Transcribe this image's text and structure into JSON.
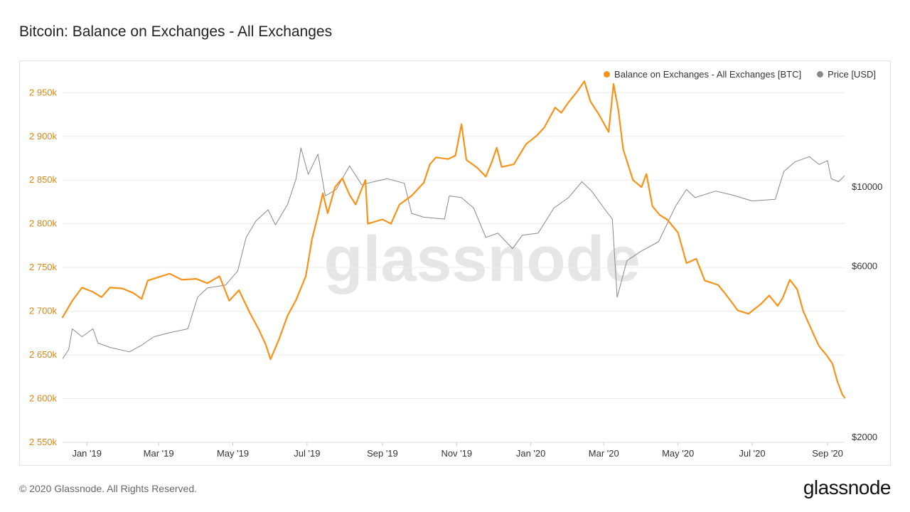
{
  "title": "Bitcoin: Balance on Exchanges - All Exchanges",
  "watermark": "glassnode",
  "footer": {
    "copyright": "© 2020 Glassnode. All Rights Reserved.",
    "brand": "glassnode"
  },
  "colors": {
    "balance": "#f7931a",
    "price": "#888888",
    "left_axis": "#d4891a",
    "right_axis": "#333333"
  },
  "legend": [
    {
      "label": "Balance on Exchanges - All Exchanges [BTC]",
      "color": "#f7931a"
    },
    {
      "label": "Price [USD]",
      "color": "#888888"
    }
  ],
  "chart_data": {
    "type": "line",
    "x_ticks": [
      "Jan '19",
      "Mar '19",
      "May '19",
      "Jul '19",
      "Sep '19",
      "Nov '19",
      "Jan '20",
      "Mar '20",
      "May '20",
      "Jul '20",
      "Sep '20"
    ],
    "x_tick_dates": [
      "2019-01-01",
      "2019-03-01",
      "2019-05-01",
      "2019-07-01",
      "2019-09-01",
      "2019-11-01",
      "2020-01-01",
      "2020-03-01",
      "2020-05-01",
      "2020-07-01",
      "2020-09-01"
    ],
    "xlim": [
      "2018-12-12",
      "2020-09-15"
    ],
    "left_axis": {
      "ticks": [
        "2 550k",
        "2 600k",
        "2 650k",
        "2 700k",
        "2 750k",
        "2 800k",
        "2 850k",
        "2 900k",
        "2 950k"
      ],
      "tick_values": [
        2550000,
        2600000,
        2650000,
        2700000,
        2750000,
        2800000,
        2850000,
        2900000,
        2950000
      ],
      "ylim": [
        2550000,
        2960000
      ]
    },
    "right_axis": {
      "scale": "log",
      "ticks": [
        "$2000",
        "$6000",
        "$10000"
      ],
      "tick_values": [
        2000,
        6000,
        10000
      ]
    },
    "series": [
      {
        "name": "Balance on Exchanges - All Exchanges [BTC]",
        "axis": "left",
        "points": [
          [
            "2018-12-12",
            2693000
          ],
          [
            "2018-12-20",
            2712000
          ],
          [
            "2018-12-28",
            2727000
          ],
          [
            "2019-01-06",
            2722000
          ],
          [
            "2019-01-13",
            2716000
          ],
          [
            "2019-01-20",
            2727000
          ],
          [
            "2019-01-30",
            2726000
          ],
          [
            "2019-02-08",
            2721000
          ],
          [
            "2019-02-15",
            2714000
          ],
          [
            "2019-02-20",
            2735000
          ],
          [
            "2019-03-01",
            2739000
          ],
          [
            "2019-03-10",
            2743000
          ],
          [
            "2019-03-20",
            2736000
          ],
          [
            "2019-04-01",
            2737000
          ],
          [
            "2019-04-10",
            2732000
          ],
          [
            "2019-04-20",
            2740000
          ],
          [
            "2019-04-28",
            2712000
          ],
          [
            "2019-05-06",
            2724000
          ],
          [
            "2019-05-15",
            2698000
          ],
          [
            "2019-05-22",
            2680000
          ],
          [
            "2019-05-28",
            2662000
          ],
          [
            "2019-06-01",
            2645000
          ],
          [
            "2019-06-08",
            2668000
          ],
          [
            "2019-06-15",
            2695000
          ],
          [
            "2019-06-22",
            2713000
          ],
          [
            "2019-06-30",
            2740000
          ],
          [
            "2019-07-05",
            2782000
          ],
          [
            "2019-07-10",
            2810000
          ],
          [
            "2019-07-14",
            2835000
          ],
          [
            "2019-07-18",
            2812000
          ],
          [
            "2019-07-24",
            2842000
          ],
          [
            "2019-07-30",
            2852000
          ],
          [
            "2019-08-05",
            2833000
          ],
          [
            "2019-08-10",
            2822000
          ],
          [
            "2019-08-15",
            2840000
          ],
          [
            "2019-08-18",
            2850000
          ],
          [
            "2019-08-20",
            2800000
          ],
          [
            "2019-09-01",
            2805000
          ],
          [
            "2019-09-08",
            2800000
          ],
          [
            "2019-09-15",
            2822000
          ],
          [
            "2019-09-25",
            2832000
          ],
          [
            "2019-10-05",
            2847000
          ],
          [
            "2019-10-10",
            2868000
          ],
          [
            "2019-10-15",
            2876000
          ],
          [
            "2019-10-25",
            2874000
          ],
          [
            "2019-10-31",
            2878000
          ],
          [
            "2019-11-05",
            2914000
          ],
          [
            "2019-11-09",
            2873000
          ],
          [
            "2019-11-18",
            2864000
          ],
          [
            "2019-11-25",
            2854000
          ],
          [
            "2019-11-30",
            2871000
          ],
          [
            "2019-12-04",
            2887000
          ],
          [
            "2019-12-08",
            2865000
          ],
          [
            "2019-12-18",
            2868000
          ],
          [
            "2019-12-28",
            2891000
          ],
          [
            "2020-01-06",
            2901000
          ],
          [
            "2020-01-12",
            2910000
          ],
          [
            "2020-01-21",
            2933000
          ],
          [
            "2020-01-26",
            2927000
          ],
          [
            "2020-02-01",
            2939000
          ],
          [
            "2020-02-08",
            2951000
          ],
          [
            "2020-02-14",
            2963000
          ],
          [
            "2020-02-19",
            2940000
          ],
          [
            "2020-02-26",
            2925000
          ],
          [
            "2020-03-05",
            2905000
          ],
          [
            "2020-03-09",
            2960000
          ],
          [
            "2020-03-13",
            2930000
          ],
          [
            "2020-03-17",
            2885000
          ],
          [
            "2020-03-25",
            2850000
          ],
          [
            "2020-04-01",
            2842000
          ],
          [
            "2020-04-05",
            2857000
          ],
          [
            "2020-04-10",
            2820000
          ],
          [
            "2020-04-16",
            2810000
          ],
          [
            "2020-04-22",
            2805000
          ],
          [
            "2020-05-01",
            2790000
          ],
          [
            "2020-05-08",
            2755000
          ],
          [
            "2020-05-16",
            2760000
          ],
          [
            "2020-05-23",
            2735000
          ],
          [
            "2020-06-03",
            2730000
          ],
          [
            "2020-06-10",
            2718000
          ],
          [
            "2020-06-19",
            2701000
          ],
          [
            "2020-06-28",
            2697000
          ],
          [
            "2020-07-08",
            2708000
          ],
          [
            "2020-07-15",
            2718000
          ],
          [
            "2020-07-22",
            2706000
          ],
          [
            "2020-07-26",
            2715000
          ],
          [
            "2020-08-01",
            2736000
          ],
          [
            "2020-08-07",
            2725000
          ],
          [
            "2020-08-12",
            2700000
          ],
          [
            "2020-08-20",
            2675000
          ],
          [
            "2020-08-25",
            2660000
          ],
          [
            "2020-08-31",
            2650000
          ],
          [
            "2020-09-05",
            2640000
          ],
          [
            "2020-09-09",
            2620000
          ],
          [
            "2020-09-13",
            2605000
          ],
          [
            "2020-09-15",
            2601000
          ]
        ]
      },
      {
        "name": "Price [USD]",
        "axis": "right",
        "points": [
          [
            "2018-12-12",
            3300
          ],
          [
            "2018-12-17",
            3500
          ],
          [
            "2018-12-20",
            4000
          ],
          [
            "2018-12-28",
            3800
          ],
          [
            "2019-01-06",
            4000
          ],
          [
            "2019-01-10",
            3650
          ],
          [
            "2019-01-20",
            3550
          ],
          [
            "2019-02-05",
            3450
          ],
          [
            "2019-02-15",
            3600
          ],
          [
            "2019-02-25",
            3800
          ],
          [
            "2019-03-10",
            3900
          ],
          [
            "2019-03-25",
            4000
          ],
          [
            "2019-04-02",
            4900
          ],
          [
            "2019-04-10",
            5200
          ],
          [
            "2019-04-25",
            5300
          ],
          [
            "2019-05-05",
            5800
          ],
          [
            "2019-05-12",
            7200
          ],
          [
            "2019-05-20",
            8000
          ],
          [
            "2019-05-30",
            8600
          ],
          [
            "2019-06-05",
            7800
          ],
          [
            "2019-06-15",
            8900
          ],
          [
            "2019-06-22",
            10500
          ],
          [
            "2019-06-26",
            12800
          ],
          [
            "2019-07-02",
            10800
          ],
          [
            "2019-07-10",
            12300
          ],
          [
            "2019-07-16",
            9400
          ],
          [
            "2019-07-25",
            9800
          ],
          [
            "2019-08-05",
            11400
          ],
          [
            "2019-08-15",
            10100
          ],
          [
            "2019-08-25",
            10300
          ],
          [
            "2019-09-05",
            10500
          ],
          [
            "2019-09-19",
            10200
          ],
          [
            "2019-09-25",
            8400
          ],
          [
            "2019-10-05",
            8200
          ],
          [
            "2019-10-22",
            8100
          ],
          [
            "2019-10-26",
            9400
          ],
          [
            "2019-11-05",
            9300
          ],
          [
            "2019-11-15",
            8700
          ],
          [
            "2019-11-25",
            7200
          ],
          [
            "2019-12-05",
            7400
          ],
          [
            "2019-12-17",
            6700
          ],
          [
            "2019-12-25",
            7300
          ],
          [
            "2020-01-07",
            7400
          ],
          [
            "2020-01-20",
            8700
          ],
          [
            "2020-02-01",
            9300
          ],
          [
            "2020-02-12",
            10300
          ],
          [
            "2020-02-20",
            9700
          ],
          [
            "2020-03-01",
            8700
          ],
          [
            "2020-03-08",
            8100
          ],
          [
            "2020-03-12",
            4900
          ],
          [
            "2020-03-20",
            6200
          ],
          [
            "2020-04-01",
            6600
          ],
          [
            "2020-04-15",
            7000
          ],
          [
            "2020-04-29",
            8800
          ],
          [
            "2020-05-08",
            9800
          ],
          [
            "2020-05-15",
            9300
          ],
          [
            "2020-06-01",
            9700
          ],
          [
            "2020-06-15",
            9450
          ],
          [
            "2020-07-01",
            9100
          ],
          [
            "2020-07-20",
            9200
          ],
          [
            "2020-07-27",
            11000
          ],
          [
            "2020-08-05",
            11700
          ],
          [
            "2020-08-17",
            12100
          ],
          [
            "2020-08-25",
            11500
          ],
          [
            "2020-09-01",
            11800
          ],
          [
            "2020-09-04",
            10500
          ],
          [
            "2020-09-10",
            10300
          ],
          [
            "2020-09-15",
            10700
          ]
        ]
      }
    ]
  }
}
